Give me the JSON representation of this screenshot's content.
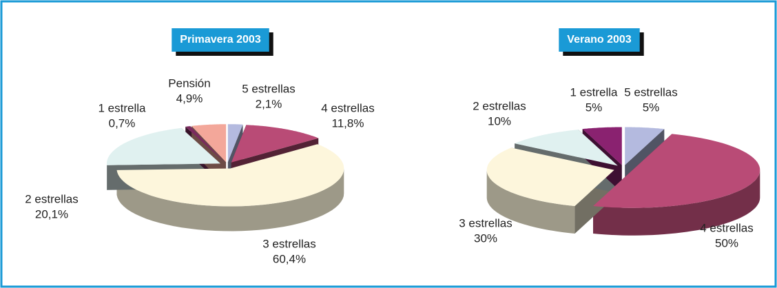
{
  "chart_data": [
    {
      "type": "pie",
      "title": "Primavera 2003",
      "categories": [
        "5 estrellas",
        "4 estrellas",
        "3 estrellas",
        "2 estrellas",
        "1 estrella",
        "Pensión"
      ],
      "values": [
        2.1,
        11.8,
        60.4,
        20.1,
        0.7,
        4.9
      ],
      "value_labels": [
        "2,1%",
        "11,8%",
        "60,4%",
        "20,1%",
        "0,7%",
        "4,9%"
      ],
      "colors": [
        "#b4badf",
        "#b94b76",
        "#fdf6dc",
        "#e0f1f0",
        "#7a2a5e",
        "#f3a79a"
      ]
    },
    {
      "type": "pie",
      "title": "Verano 2003",
      "categories": [
        "5 estrellas",
        "4 estrellas",
        "3 estrellas",
        "2 estrellas",
        "1 estrella"
      ],
      "values": [
        5,
        50,
        30,
        10,
        5
      ],
      "value_labels": [
        "5%",
        "50%",
        "30%",
        "10%",
        "5%"
      ],
      "colors": [
        "#b4badf",
        "#b94b76",
        "#fdf6dc",
        "#e0f1f0",
        "#8a2270"
      ]
    }
  ]
}
